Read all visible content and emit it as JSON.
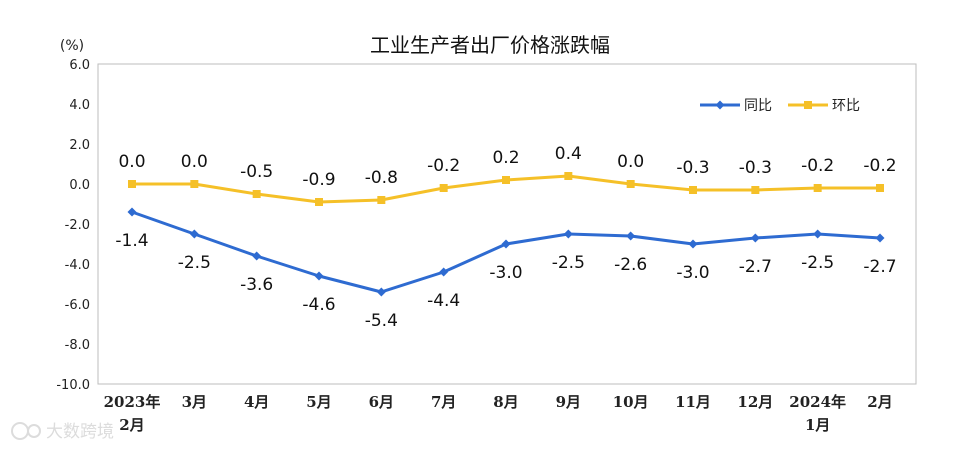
{
  "chart_data": {
    "type": "line",
    "title": "工业生产者出厂价格涨跌幅",
    "unit": "(%)",
    "ylim": [
      -10,
      6
    ],
    "yticks": [
      "6.0",
      "4.0",
      "2.0",
      "0.0",
      "-2.0",
      "-4.0",
      "-6.0",
      "-8.0",
      "-10.0"
    ],
    "categories": [
      [
        "2023年",
        "2月"
      ],
      [
        "3月"
      ],
      [
        "4月"
      ],
      [
        "5月"
      ],
      [
        "6月"
      ],
      [
        "7月"
      ],
      [
        "8月"
      ],
      [
        "9月"
      ],
      [
        "10月"
      ],
      [
        "11月"
      ],
      [
        "12月"
      ],
      [
        "2024年",
        "1月"
      ],
      [
        "2月"
      ]
    ],
    "legend_position": "top-right",
    "series": [
      {
        "name": "同比",
        "color": "#2e6bd1",
        "marker": "diamond",
        "values": [
          -1.4,
          -2.5,
          -3.6,
          -4.6,
          -5.4,
          -4.4,
          -3.0,
          -2.5,
          -2.6,
          -3.0,
          -2.7,
          -2.5,
          -2.7
        ],
        "labels": [
          "-1.4",
          "-2.5",
          "-3.6",
          "-4.6",
          "-5.4",
          "-4.4",
          "-3.0",
          "-2.5",
          "-2.6",
          "-3.0",
          "-2.7",
          "-2.5",
          "-2.7"
        ],
        "label_position": "below"
      },
      {
        "name": "环比",
        "color": "#f5c028",
        "marker": "square",
        "values": [
          0.0,
          0.0,
          -0.5,
          -0.9,
          -0.8,
          -0.2,
          0.2,
          0.4,
          0.0,
          -0.3,
          -0.3,
          -0.2,
          -0.2
        ],
        "labels": [
          "0.0",
          "0.0",
          "-0.5",
          "-0.9",
          "-0.8",
          "-0.2",
          "0.2",
          "0.4",
          "0.0",
          "-0.3",
          "-0.3",
          "-0.2",
          "-0.2"
        ],
        "label_position": "above"
      }
    ],
    "watermark": "大数跨境"
  }
}
